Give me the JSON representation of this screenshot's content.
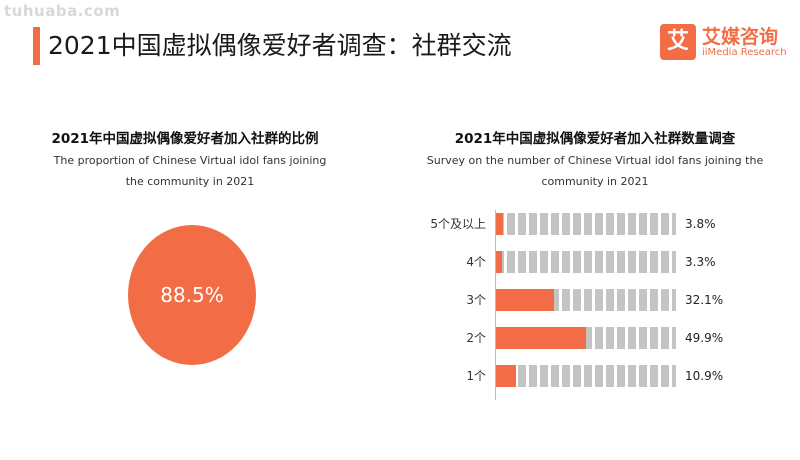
{
  "watermark": "tuhuaba.com",
  "page_title": "2021中国虚拟偶像爱好者调查：社群交流",
  "logo": {
    "mark": "艾",
    "name_cn": "艾媒咨询",
    "name_en": "iiMedia Research"
  },
  "colors": {
    "accent": "#f26c46",
    "track": "#c4c4c4"
  },
  "chart_data": [
    {
      "type": "pie",
      "title": "2021年中国虚拟偶像爱好者加入社群的比例",
      "subtitle": "The proportion of Chinese Virtual idol fans joining the community in 2021",
      "slices": [
        {
          "value": 88.5,
          "label": "88.5%"
        }
      ]
    },
    {
      "type": "bar",
      "orientation": "horizontal",
      "title": "2021年中国虚拟偶像爱好者加入社群数量调查",
      "subtitle": "Survey on the number of Chinese Virtual idol fans joining the community in 2021",
      "categories": [
        "5个及以上",
        "4个",
        "3个",
        "2个",
        "1个"
      ],
      "values": [
        3.8,
        3.3,
        32.1,
        49.9,
        10.9
      ],
      "value_labels": [
        "3.8%",
        "3.3%",
        "32.1%",
        "49.9%",
        "10.9%"
      ],
      "xlim": [
        0,
        100
      ]
    }
  ]
}
